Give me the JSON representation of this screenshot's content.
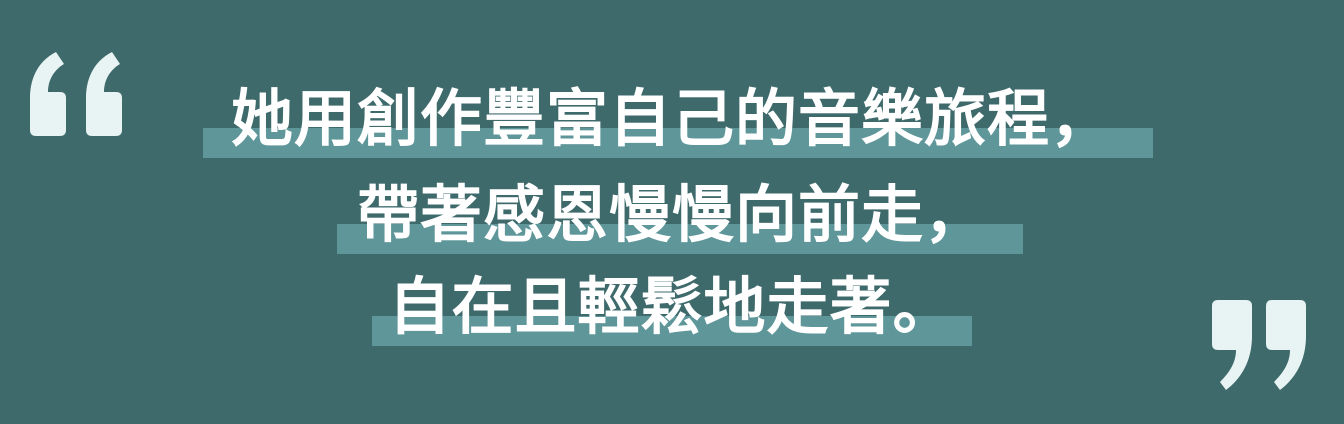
{
  "quote": {
    "lines": [
      "她用創作豐富自己的音樂旅程，",
      "帶著感恩慢慢向前走，",
      "自在且輕鬆地走著。"
    ]
  },
  "icons": {
    "open": "open-quote-icon",
    "close": "close-quote-icon"
  },
  "colors": {
    "background": "#3e6a6c",
    "highlight": "#5e9699",
    "quote_marks": "#e8f4f3",
    "text": "#ffffff"
  }
}
